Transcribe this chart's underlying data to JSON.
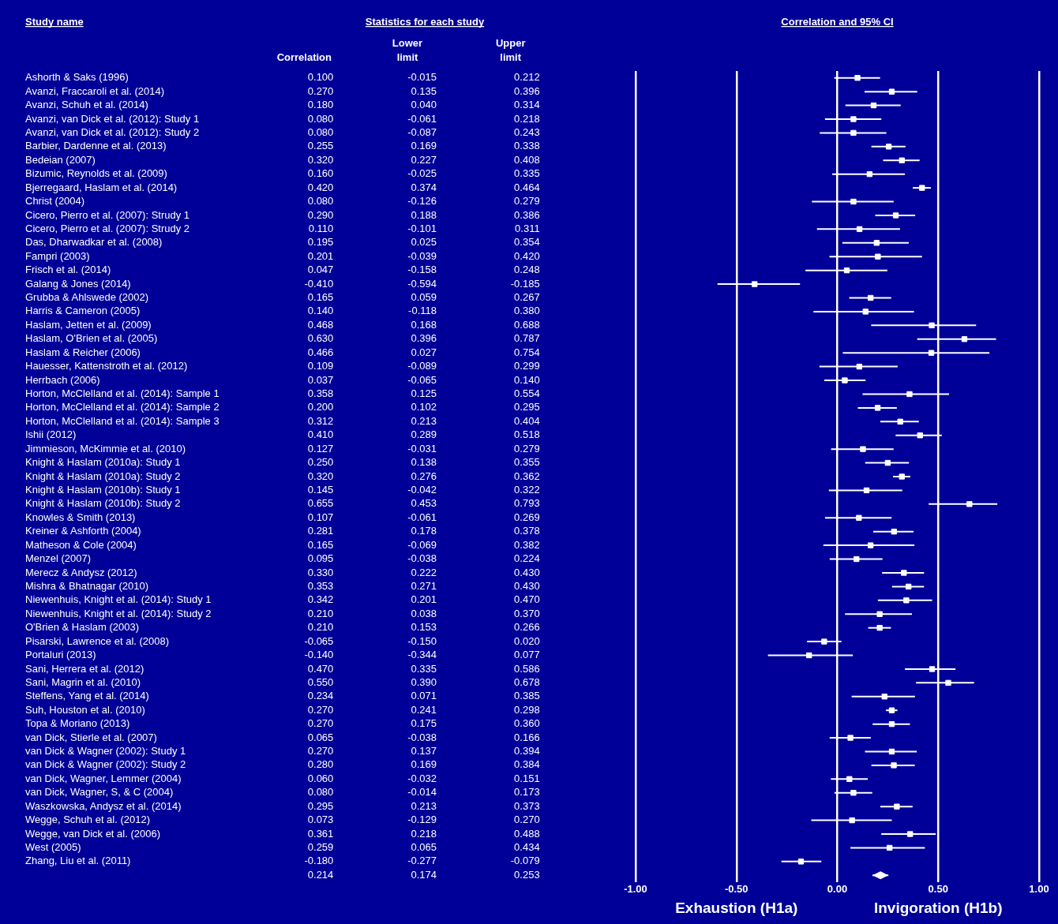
{
  "chart_data": [
    {
      "type": "heatmap",
      "title": "Statistics for each study",
      "annotations": [
        "Study name"
      ],
      "categories": [
        "Correlation",
        "Lower limit",
        "Upper limit"
      ],
      "y_categories": [
        "Ashorth & Saks (1996)",
        "Avanzi, Fraccaroli et al. (2014)",
        "Avanzi, Schuh et al. (2014)",
        "Avanzi, van Dick et al. (2012): Study 1",
        "Avanzi, van Dick et al. (2012): Study 2",
        "Barbier, Dardenne et al. (2013)",
        "Bedeian (2007)",
        "Bizumic, Reynolds et al. (2009)",
        "Bjerregaard, Haslam et al. (2014)",
        "Christ (2004)",
        "Cicero, Pierro et al. (2007): Strudy 1",
        "Cicero, Pierro et al. (2007): Strudy 2",
        "Das, Dharwadkar et al. (2008)",
        "Fampri (2003)",
        "Frisch et al. (2014)",
        "Galang & Jones (2014)",
        "Grubba & Ahlswede (2002)",
        "Harris & Cameron (2005)",
        "Haslam, Jetten et al. (2009)",
        "Haslam, O'Brien et al. (2005)",
        "Haslam & Reicher (2006)",
        "Hauesser, Kattenstroth et al. (2012)",
        "Herrbach (2006)",
        "Horton, McClelland et al. (2014): Sample 1",
        "Horton, McClelland et al. (2014): Sample 2",
        "Horton, McClelland et al. (2014): Sample 3",
        "Ishii (2012)",
        "Jimmieson, McKimmie et al. (2010)",
        "Knight & Haslam (2010a): Study 1",
        "Knight & Haslam (2010a): Study 2",
        "Knight & Haslam (2010b): Study 1",
        "Knight & Haslam (2010b): Study 2",
        "Knowles & Smith (2013)",
        "Kreiner & Ashforth (2004)",
        "Matheson & Cole (2004)",
        "Menzel (2007)",
        "Merecz & Andysz (2012)",
        "Mishra & Bhatnagar (2010)",
        "Niewenhuis, Knight et al. (2014): Study 1",
        "Niewenhuis, Knight et al. (2014): Study 2",
        "O'Brien & Haslam (2003)",
        "Pisarski, Lawrence et al. (2008)",
        "Portaluri (2013)",
        "Sani, Herrera et al. (2012)",
        "Sani, Magrin et al. (2010)",
        "Steffens, Yang et al. (2014)",
        "Suh, Houston et al. (2010)",
        "Topa & Moriano (2013)",
        "van Dick, Stierle et al. (2007)",
        "van Dick & Wagner (2002): Study 1",
        "van Dick & Wagner (2002): Study 2",
        "van Dick, Wagner, Lemmer (2004)",
        "van Dick, Wagner, S, & C (2004)",
        "Waszkowska, Andysz et al. (2014)",
        "Wegge, Schuh et al. (2012)",
        "Wegge, van Dick et al. (2006)",
        "West (2005)",
        "Zhang, Liu et al. (2011)",
        null
      ],
      "cells": [
        [
          0.1,
          -0.015,
          0.212
        ],
        [
          0.27,
          0.135,
          0.396
        ],
        [
          0.18,
          0.04,
          0.314
        ],
        [
          0.08,
          -0.061,
          0.218
        ],
        [
          0.08,
          -0.087,
          0.243
        ],
        [
          0.255,
          0.169,
          0.338
        ],
        [
          0.32,
          0.227,
          0.408
        ],
        [
          0.16,
          -0.025,
          0.335
        ],
        [
          0.42,
          0.374,
          0.464
        ],
        [
          0.08,
          -0.126,
          0.279
        ],
        [
          0.29,
          0.188,
          0.386
        ],
        [
          0.11,
          -0.101,
          0.311
        ],
        [
          0.195,
          0.025,
          0.354
        ],
        [
          0.201,
          -0.039,
          0.42
        ],
        [
          0.047,
          -0.158,
          0.248
        ],
        [
          -0.41,
          -0.594,
          -0.185
        ],
        [
          0.165,
          0.059,
          0.267
        ],
        [
          0.14,
          -0.118,
          0.38
        ],
        [
          0.468,
          0.168,
          0.688
        ],
        [
          0.63,
          0.396,
          0.787
        ],
        [
          0.466,
          0.027,
          0.754
        ],
        [
          0.109,
          -0.089,
          0.299
        ],
        [
          0.037,
          -0.065,
          0.14
        ],
        [
          0.358,
          0.125,
          0.554
        ],
        [
          0.2,
          0.102,
          0.295
        ],
        [
          0.312,
          0.213,
          0.404
        ],
        [
          0.41,
          0.289,
          0.518
        ],
        [
          0.127,
          -0.031,
          0.279
        ],
        [
          0.25,
          0.138,
          0.355
        ],
        [
          0.32,
          0.276,
          0.362
        ],
        [
          0.145,
          -0.042,
          0.322
        ],
        [
          0.655,
          0.453,
          0.793
        ],
        [
          0.107,
          -0.061,
          0.269
        ],
        [
          0.281,
          0.178,
          0.378
        ],
        [
          0.165,
          -0.069,
          0.382
        ],
        [
          0.095,
          -0.038,
          0.224
        ],
        [
          0.33,
          0.222,
          0.43
        ],
        [
          0.353,
          0.271,
          0.43
        ],
        [
          0.342,
          0.201,
          0.47
        ],
        [
          0.21,
          0.038,
          0.37
        ],
        [
          0.21,
          0.153,
          0.266
        ],
        [
          -0.065,
          -0.15,
          0.02
        ],
        [
          -0.14,
          -0.344,
          0.077
        ],
        [
          0.47,
          0.335,
          0.586
        ],
        [
          0.55,
          0.39,
          0.678
        ],
        [
          0.234,
          0.071,
          0.385
        ],
        [
          0.27,
          0.241,
          0.298
        ],
        [
          0.27,
          0.175,
          0.36
        ],
        [
          0.065,
          -0.038,
          0.166
        ],
        [
          0.27,
          0.137,
          0.394
        ],
        [
          0.28,
          0.169,
          0.384
        ],
        [
          0.06,
          -0.032,
          0.151
        ],
        [
          0.08,
          -0.014,
          0.173
        ],
        [
          0.295,
          0.213,
          0.373
        ],
        [
          0.073,
          -0.129,
          0.27
        ],
        [
          0.361,
          0.218,
          0.488
        ],
        [
          0.259,
          0.065,
          0.434
        ],
        [
          -0.18,
          -0.277,
          -0.079
        ],
        [
          0.214,
          0.174,
          0.253
        ]
      ],
      "cell_labels": [
        [
          "0.100",
          "-0.015",
          "0.212"
        ],
        [
          "0.270",
          "0.135",
          "0.396"
        ],
        [
          "0.180",
          "0.040",
          "0.314"
        ],
        [
          "0.080",
          "-0.061",
          "0.218"
        ],
        [
          "0.080",
          "-0.087",
          "0.243"
        ],
        [
          "0.255",
          "0.169",
          "0.338"
        ],
        [
          "0.320",
          "0.227",
          "0.408"
        ],
        [
          "0.160",
          "-0.025",
          "0.335"
        ],
        [
          "0.420",
          "0.374",
          "0.464"
        ],
        [
          "0.080",
          "-0.126",
          "0.279"
        ],
        [
          "0.290",
          "0.188",
          "0.386"
        ],
        [
          "0.110",
          "-0.101",
          "0.311"
        ],
        [
          "0.195",
          "0.025",
          "0.354"
        ],
        [
          "0.201",
          "-0.039",
          "0.420"
        ],
        [
          "0.047",
          "-0.158",
          "0.248"
        ],
        [
          "-0.410",
          "-0.594",
          "-0.185"
        ],
        [
          "0.165",
          "0.059",
          "0.267"
        ],
        [
          "0.140",
          "-0.118",
          "0.380"
        ],
        [
          "0.468",
          "0.168",
          "0.688"
        ],
        [
          "0.630",
          "0.396",
          "0.787"
        ],
        [
          "0.466",
          "0.027",
          "0.754"
        ],
        [
          "0.109",
          "-0.089",
          "0.299"
        ],
        [
          "0.037",
          "-0.065",
          "0.140"
        ],
        [
          "0.358",
          "0.125",
          "0.554"
        ],
        [
          "0.200",
          "0.102",
          "0.295"
        ],
        [
          "0.312",
          "0.213",
          "0.404"
        ],
        [
          "0.410",
          "0.289",
          "0.518"
        ],
        [
          "0.127",
          "-0.031",
          "0.279"
        ],
        [
          "0.250",
          "0.138",
          "0.355"
        ],
        [
          "0.320",
          "0.276",
          "0.362"
        ],
        [
          "0.145",
          "-0.042",
          "0.322"
        ],
        [
          "0.655",
          "0.453",
          "0.793"
        ],
        [
          "0.107",
          "-0.061",
          "0.269"
        ],
        [
          "0.281",
          "0.178",
          "0.378"
        ],
        [
          "0.165",
          "-0.069",
          "0.382"
        ],
        [
          "0.095",
          "-0.038",
          "0.224"
        ],
        [
          "0.330",
          "0.222",
          "0.430"
        ],
        [
          "0.353",
          "0.271",
          "0.430"
        ],
        [
          "0.342",
          "0.201",
          "0.470"
        ],
        [
          "0.210",
          "0.038",
          "0.370"
        ],
        [
          "0.210",
          "0.153",
          "0.266"
        ],
        [
          "-0.065",
          "-0.150",
          "0.020"
        ],
        [
          "-0.140",
          "-0.344",
          "0.077"
        ],
        [
          "0.470",
          "0.335",
          "0.586"
        ],
        [
          "0.550",
          "0.390",
          "0.678"
        ],
        [
          "0.234",
          "0.071",
          "0.385"
        ],
        [
          "0.270",
          "0.241",
          "0.298"
        ],
        [
          "0.270",
          "0.175",
          "0.360"
        ],
        [
          "0.065",
          "-0.038",
          "0.166"
        ],
        [
          "0.270",
          "0.137",
          "0.394"
        ],
        [
          "0.280",
          "0.169",
          "0.384"
        ],
        [
          "0.060",
          "-0.032",
          "0.151"
        ],
        [
          "0.080",
          "-0.014",
          "0.173"
        ],
        [
          "0.295",
          "0.213",
          "0.373"
        ],
        [
          "0.073",
          "-0.129",
          "0.270"
        ],
        [
          "0.361",
          "0.218",
          "0.488"
        ],
        [
          "0.259",
          "0.065",
          "0.434"
        ],
        [
          "-0.180",
          "-0.277",
          "-0.079"
        ],
        [
          "0.214",
          "0.174",
          "0.253"
        ]
      ],
      "data_labels": true
    },
    {
      "type": "scatter",
      "orientation": "horizontal",
      "title": "Correlation and 95% CI",
      "annotations": [
        "Exhaustion (H1a)",
        "Invigoration (H1b)"
      ],
      "categories": [
        null,
        null,
        null,
        null,
        null,
        null,
        null,
        null,
        null,
        null,
        null,
        null,
        null,
        null,
        null,
        null,
        null,
        null,
        null,
        null,
        null,
        null,
        null,
        null,
        null,
        null,
        null,
        null,
        null,
        null,
        null,
        null,
        null,
        null,
        null,
        null,
        null,
        null,
        null,
        null,
        null,
        null,
        null,
        null,
        null,
        null,
        null,
        null,
        null,
        null,
        null,
        null,
        null,
        null,
        null,
        null,
        null,
        null,
        null
      ],
      "series": [
        {
          "color": "#ffffff",
          "marker": "square",
          "values": [
            0.1,
            0.27,
            0.18,
            0.08,
            0.08,
            0.255,
            0.32,
            0.16,
            0.42,
            0.08,
            0.29,
            0.11,
            0.195,
            0.201,
            0.047,
            -0.41,
            0.165,
            0.14,
            0.468,
            0.63,
            0.466,
            0.109,
            0.037,
            0.358,
            0.2,
            0.312,
            0.41,
            0.127,
            0.25,
            0.32,
            0.145,
            0.655,
            0.107,
            0.281,
            0.165,
            0.095,
            0.33,
            0.353,
            0.342,
            0.21,
            0.21,
            -0.065,
            -0.14,
            0.47,
            0.55,
            0.234,
            0.27,
            0.27,
            0.065,
            0.27,
            0.28,
            0.06,
            0.08,
            0.295,
            0.073,
            0.361,
            0.259,
            -0.18,
            null
          ],
          "errors": [
            [
              -0.015,
              0.212
            ],
            [
              0.135,
              0.396
            ],
            [
              0.04,
              0.314
            ],
            [
              -0.061,
              0.218
            ],
            [
              -0.087,
              0.243
            ],
            [
              0.169,
              0.338
            ],
            [
              0.227,
              0.408
            ],
            [
              -0.025,
              0.335
            ],
            [
              0.374,
              0.464
            ],
            [
              -0.126,
              0.279
            ],
            [
              0.188,
              0.386
            ],
            [
              -0.101,
              0.311
            ],
            [
              0.025,
              0.354
            ],
            [
              -0.039,
              0.42
            ],
            [
              -0.158,
              0.248
            ],
            [
              -0.594,
              -0.185
            ],
            [
              0.059,
              0.267
            ],
            [
              -0.118,
              0.38
            ],
            [
              0.168,
              0.688
            ],
            [
              0.396,
              0.787
            ],
            [
              0.027,
              0.754
            ],
            [
              -0.089,
              0.299
            ],
            [
              -0.065,
              0.14
            ],
            [
              0.125,
              0.554
            ],
            [
              0.102,
              0.295
            ],
            [
              0.213,
              0.404
            ],
            [
              0.289,
              0.518
            ],
            [
              -0.031,
              0.279
            ],
            [
              0.138,
              0.355
            ],
            [
              0.276,
              0.362
            ],
            [
              -0.042,
              0.322
            ],
            [
              0.453,
              0.793
            ],
            [
              -0.061,
              0.269
            ],
            [
              0.178,
              0.378
            ],
            [
              -0.069,
              0.382
            ],
            [
              -0.038,
              0.224
            ],
            [
              0.222,
              0.43
            ],
            [
              0.271,
              0.43
            ],
            [
              0.201,
              0.47
            ],
            [
              0.038,
              0.37
            ],
            [
              0.153,
              0.266
            ],
            [
              -0.15,
              0.02
            ],
            [
              -0.344,
              0.077
            ],
            [
              0.335,
              0.586
            ],
            [
              0.39,
              0.678
            ],
            [
              0.071,
              0.385
            ],
            [
              0.241,
              0.298
            ],
            [
              0.175,
              0.36
            ],
            [
              -0.038,
              0.166
            ],
            [
              0.137,
              0.394
            ],
            [
              0.169,
              0.384
            ],
            [
              -0.032,
              0.151
            ],
            [
              -0.014,
              0.173
            ],
            [
              0.213,
              0.373
            ],
            [
              -0.129,
              0.27
            ],
            [
              0.218,
              0.488
            ],
            [
              0.065,
              0.434
            ],
            [
              -0.277,
              -0.079
            ],
            null
          ]
        },
        {
          "color": "#ffffff",
          "marker": "diamond",
          "values": [
            null,
            null,
            null,
            null,
            null,
            null,
            null,
            null,
            null,
            null,
            null,
            null,
            null,
            null,
            null,
            null,
            null,
            null,
            null,
            null,
            null,
            null,
            null,
            null,
            null,
            null,
            null,
            null,
            null,
            null,
            null,
            null,
            null,
            null,
            null,
            null,
            null,
            null,
            null,
            null,
            null,
            null,
            null,
            null,
            null,
            null,
            null,
            null,
            null,
            null,
            null,
            null,
            null,
            null,
            null,
            null,
            null,
            null,
            0.214
          ],
          "errors": [
            null,
            null,
            null,
            null,
            null,
            null,
            null,
            null,
            null,
            null,
            null,
            null,
            null,
            null,
            null,
            null,
            null,
            null,
            null,
            null,
            null,
            null,
            null,
            null,
            null,
            null,
            null,
            null,
            null,
            null,
            null,
            null,
            null,
            null,
            null,
            null,
            null,
            null,
            null,
            null,
            null,
            null,
            null,
            null,
            null,
            null,
            null,
            null,
            null,
            null,
            null,
            null,
            null,
            null,
            null,
            null,
            null,
            null,
            [
              0.174,
              0.253
            ]
          ]
        }
      ],
      "xlim": [
        -1,
        1
      ],
      "xticks": [
        {
          "value": -1,
          "label": "-1.00"
        },
        {
          "value": -0.5,
          "label": "-0.50"
        },
        {
          "value": 0,
          "label": "0.00"
        },
        {
          "value": 0.5,
          "label": "0.50"
        },
        {
          "value": 1,
          "label": "1.00"
        }
      ],
      "grid": "x",
      "legend": false
    }
  ]
}
